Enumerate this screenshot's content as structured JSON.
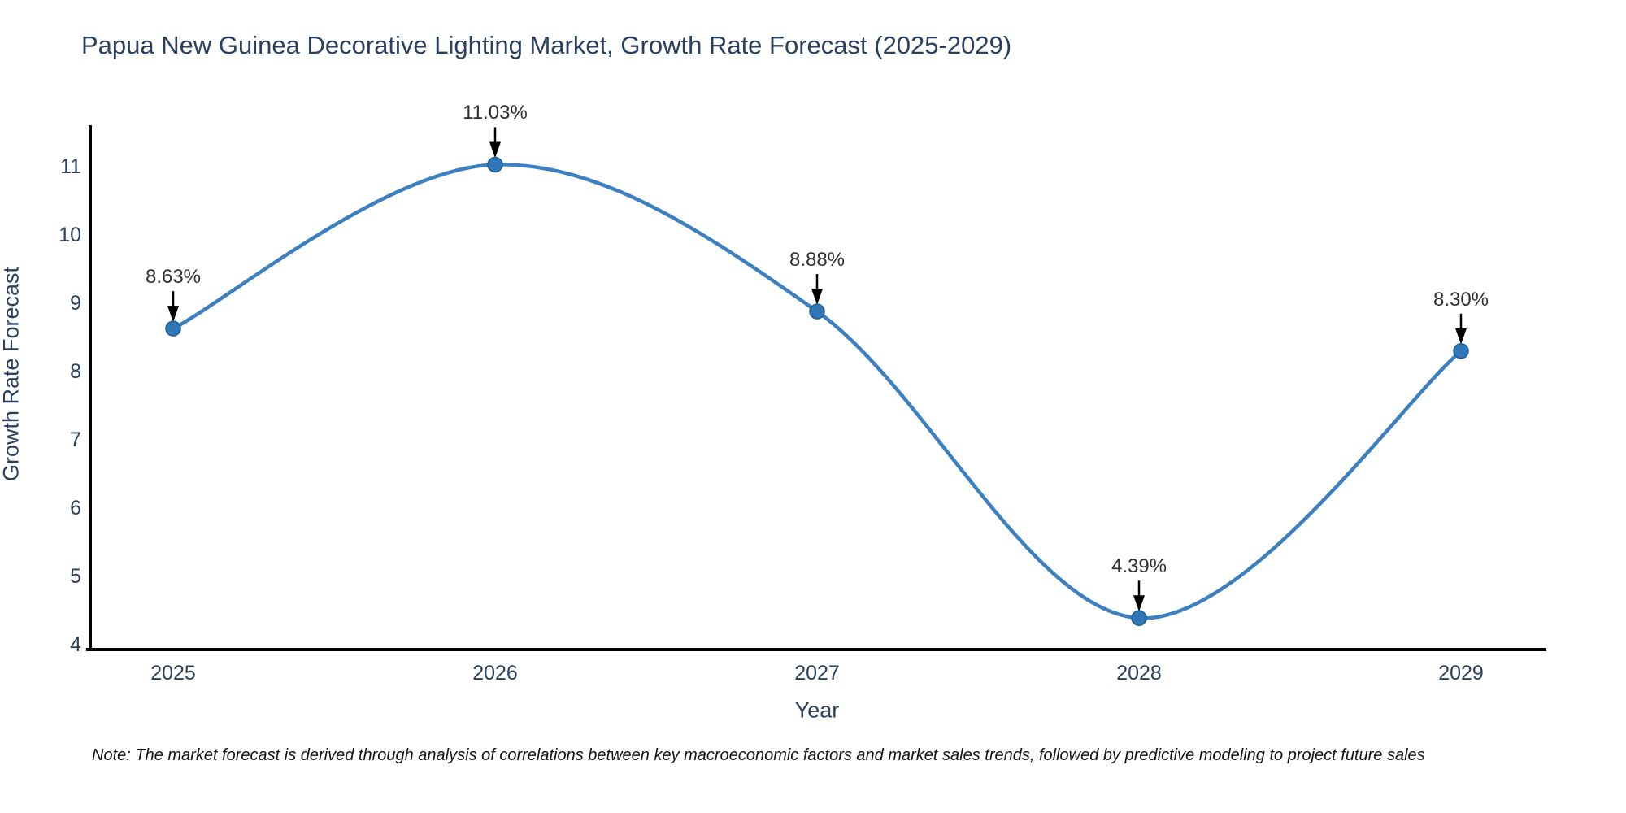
{
  "title": "Papua New Guinea Decorative Lighting Market, Growth Rate Forecast (2025-2029)",
  "note": "Note: The market forecast is derived through analysis of correlations between key macroeconomic factors and market sales trends, followed by predictive modeling to project future sales",
  "chart_data": {
    "type": "line",
    "line_shape": "spline",
    "x": [
      2025,
      2026,
      2027,
      2028,
      2029
    ],
    "series": [
      {
        "name": "Growth Rate Forecast",
        "values": [
          8.63,
          11.03,
          8.88,
          4.39,
          8.3
        ]
      }
    ],
    "point_labels": [
      "8.63%",
      "11.03%",
      "8.88%",
      "4.39%",
      "8.30%"
    ],
    "title": "Papua New Guinea Decorative Lighting Market, Growth Rate Forecast (2025-2029)",
    "xlabel": "Year",
    "ylabel": "Growth Rate Forecast",
    "ylim": [
      4,
      11
    ],
    "yticks": [
      4,
      5,
      6,
      7,
      8,
      9,
      10,
      11
    ],
    "grid": false,
    "legend_position": "none",
    "colors": {
      "line": "#3c80c0",
      "marker": "#2f77b6",
      "marker_edge": "#1f5f98",
      "axis": "#000000",
      "arrow": "#000000",
      "tick_text": "#2a3f5f",
      "annotation_text": "#2f2f2f"
    }
  }
}
